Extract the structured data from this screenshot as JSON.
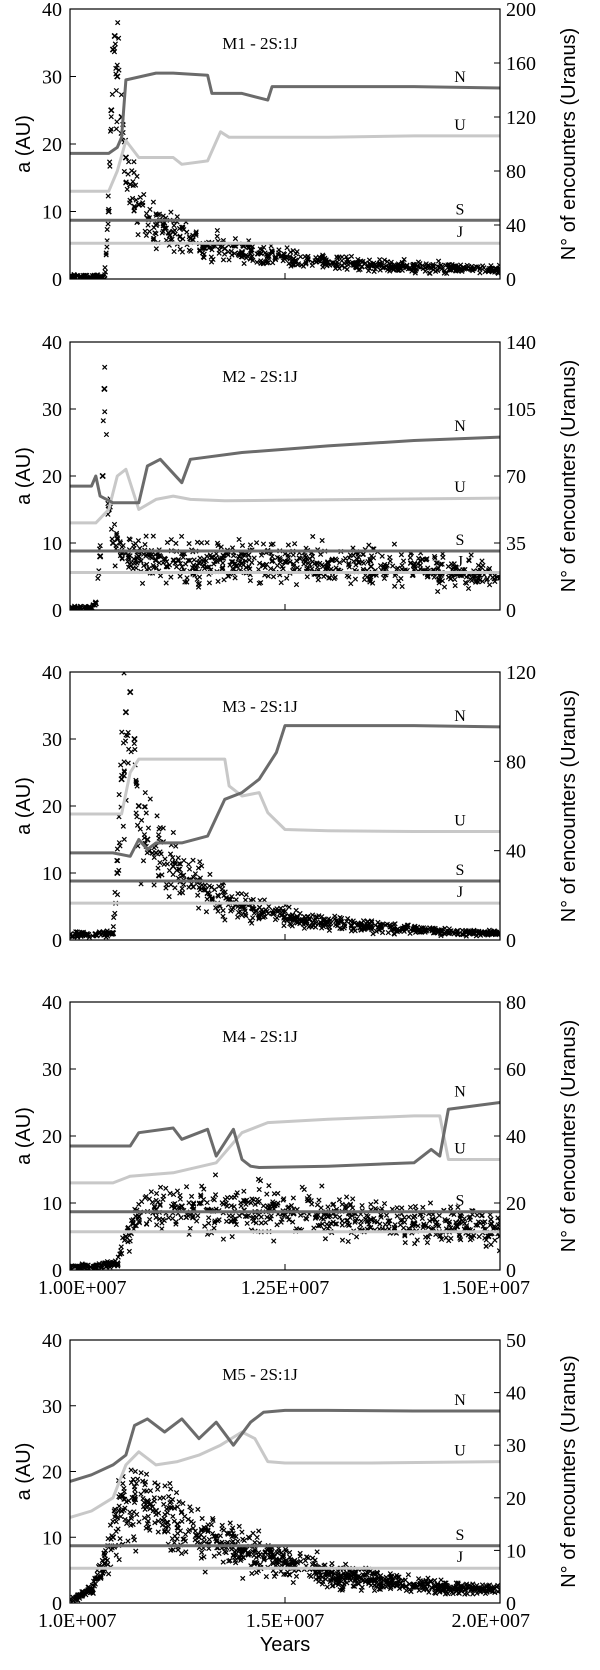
{
  "chart_data": [
    {
      "type": "line",
      "title": "M1 - 2S:1J",
      "ylabel_left": "a (AU)",
      "ylabel_right": "N° of encounters (Uranus)",
      "xlim": [
        10000000,
        15000000
      ],
      "ylim_left": [
        0,
        40
      ],
      "ylim_right": [
        0,
        200
      ],
      "yticks_left": [
        "0",
        "10",
        "20",
        "30",
        "40"
      ],
      "yticks_right": [
        "0",
        "40",
        "80",
        "120",
        "160",
        "200"
      ],
      "xticks": [],
      "colors": {
        "N": "#6b6b6b",
        "U": "#c8c8c8",
        "S": "#6b6b6b",
        "J": "#c8c8c8",
        "encounters": "#000000"
      },
      "series": [
        {
          "name": "N",
          "x": [
            10000000,
            10450000,
            10550000,
            10600000,
            10650000,
            11000000,
            11200000,
            11600000,
            11650000,
            12000000,
            12300000,
            12350000,
            13000000,
            14000000,
            15000000
          ],
          "y": [
            18.6,
            18.6,
            19.5,
            21,
            29.5,
            30.5,
            30.5,
            30.2,
            27.5,
            27.5,
            26.5,
            28.5,
            28.5,
            28.5,
            28.3
          ]
        },
        {
          "name": "U",
          "x": [
            10000000,
            10450000,
            10550000,
            10650000,
            10800000,
            11200000,
            11300000,
            11600000,
            11750000,
            11850000,
            12300000,
            12400000,
            13000000,
            14000000,
            15000000
          ],
          "y": [
            13,
            13,
            16,
            20.5,
            18,
            18,
            17,
            17.5,
            21.8,
            21,
            21,
            21,
            21,
            21.2,
            21.2
          ]
        },
        {
          "name": "S",
          "x": [
            10000000,
            15000000
          ],
          "y": [
            8.7,
            8.7
          ]
        },
        {
          "name": "J",
          "x": [
            10000000,
            15000000
          ],
          "y": [
            5.3,
            5.3
          ]
        },
        {
          "name": "encounters",
          "kind": "scatter",
          "x": [
            10000000,
            10200000,
            10400000,
            10450000,
            10480000,
            10500000,
            10520000,
            10550000,
            10600000,
            10650000,
            10700000,
            10800000,
            10900000,
            11000000,
            11100000,
            11200000,
            11400000,
            11600000,
            11800000,
            12000000,
            12300000,
            12600000,
            13000000,
            13500000,
            14000000,
            14500000,
            15000000
          ],
          "y": [
            0,
            0,
            0,
            10,
            25,
            34,
            36,
            30,
            24,
            18,
            14,
            11,
            9,
            8,
            7.5,
            7,
            6,
            5,
            4.5,
            4,
            3.5,
            3,
            2.5,
            2,
            1.8,
            1.6,
            1.5
          ]
        }
      ],
      "annotations": [
        "N",
        "U",
        "S",
        "J"
      ]
    },
    {
      "type": "line",
      "title": "M2 - 2S:1J",
      "ylabel_left": "a (AU)",
      "ylabel_right": "N° of encounters (Uranus)",
      "xlim": [
        10000000,
        15000000
      ],
      "ylim_left": [
        0,
        40
      ],
      "ylim_right": [
        0,
        140
      ],
      "yticks_left": [
        "0",
        "10",
        "20",
        "30",
        "40"
      ],
      "yticks_right": [
        "0",
        "35",
        "70",
        "105",
        "140"
      ],
      "xticks": [],
      "colors": {
        "N": "#6b6b6b",
        "U": "#c8c8c8",
        "S": "#6b6b6b",
        "J": "#c8c8c8",
        "encounters": "#000000"
      },
      "series": [
        {
          "name": "N",
          "x": [
            10000000,
            10250000,
            10300000,
            10350000,
            10500000,
            10800000,
            10900000,
            11050000,
            11300000,
            11400000,
            12000000,
            12500000,
            13000000,
            14000000,
            15000000
          ],
          "y": [
            18.5,
            18.5,
            20,
            17,
            16,
            16,
            21.5,
            22.5,
            19,
            22.5,
            23.5,
            24,
            24.5,
            25.3,
            25.8
          ]
        },
        {
          "name": "U",
          "x": [
            10000000,
            10300000,
            10450000,
            10550000,
            10650000,
            10800000,
            11000000,
            11200000,
            11400000,
            11800000,
            12500000,
            13500000,
            15000000
          ],
          "y": [
            13,
            13,
            15,
            20,
            21,
            15,
            16.5,
            17,
            16.5,
            16.3,
            16.4,
            16.5,
            16.7
          ]
        },
        {
          "name": "S",
          "x": [
            10000000,
            15000000
          ],
          "y": [
            8.8,
            8.8
          ]
        },
        {
          "name": "J",
          "x": [
            10000000,
            15000000
          ],
          "y": [
            5.6,
            5.6
          ]
        },
        {
          "name": "encounters",
          "kind": "scatter",
          "x": [
            10000000,
            10200000,
            10300000,
            10350000,
            10380000,
            10400000,
            10450000,
            10500000,
            10600000,
            10800000,
            11000000,
            11500000,
            12000000,
            12500000,
            13000000,
            13500000,
            14000000,
            14500000,
            15000000
          ],
          "y": [
            0,
            0,
            1,
            8,
            20,
            33,
            15,
            10,
            8.5,
            8,
            7.5,
            7,
            7,
            7.2,
            7,
            6.5,
            6,
            5.5,
            4.8
          ]
        }
      ],
      "annotations": [
        "N",
        "U",
        "S",
        "J"
      ]
    },
    {
      "type": "line",
      "title": "M3 - 2S:1J",
      "ylabel_left": "a (AU)",
      "ylabel_right": "N° of encounters (Uranus)",
      "xlim": [
        10000000,
        15000000
      ],
      "ylim_left": [
        0,
        40
      ],
      "ylim_right": [
        0,
        120
      ],
      "yticks_left": [
        "0",
        "10",
        "20",
        "30",
        "40"
      ],
      "yticks_right": [
        "0",
        "40",
        "80",
        "120"
      ],
      "xticks": [],
      "colors": {
        "N": "#6b6b6b",
        "U": "#c8c8c8",
        "S": "#6b6b6b",
        "J": "#c8c8c8",
        "encounters": "#000000"
      },
      "series": [
        {
          "name": "N",
          "x": [
            10000000,
            10500000,
            10700000,
            10800000,
            10900000,
            11000000,
            11300000,
            11600000,
            11800000,
            12000000,
            12200000,
            12400000,
            12500000,
            13000000,
            14000000,
            15000000
          ],
          "y": [
            13,
            13,
            12.5,
            15,
            13.5,
            14.5,
            14.5,
            15.5,
            21,
            22,
            24,
            28,
            32,
            32,
            32,
            31.8
          ]
        },
        {
          "name": "U",
          "x": [
            10000000,
            10600000,
            10700000,
            10800000,
            10900000,
            11000000,
            11300000,
            11800000,
            11850000,
            12000000,
            12200000,
            12300000,
            12500000,
            13000000,
            14000000,
            15000000
          ],
          "y": [
            18.8,
            18.8,
            25,
            27,
            27,
            27,
            27,
            27,
            23,
            21.5,
            22,
            19,
            16.5,
            16.3,
            16.2,
            16.2
          ]
        },
        {
          "name": "S",
          "x": [
            10000000,
            15000000
          ],
          "y": [
            8.8,
            8.8
          ]
        },
        {
          "name": "J",
          "x": [
            10000000,
            15000000
          ],
          "y": [
            5.5,
            5.5
          ]
        },
        {
          "name": "encounters",
          "kind": "scatter",
          "x": [
            10000000,
            10300000,
            10500000,
            10550000,
            10600000,
            10650000,
            10700000,
            10750000,
            10800000,
            10900000,
            11000000,
            11200000,
            11400000,
            11600000,
            12000000,
            12500000,
            13000000,
            13500000,
            14000000,
            14500000,
            15000000
          ],
          "y": [
            0.8,
            0.8,
            1,
            10,
            24,
            34,
            37,
            30,
            20,
            15,
            13,
            11,
            9,
            7,
            5,
            3.5,
            2.5,
            2,
            1.5,
            1.2,
            1
          ]
        }
      ],
      "annotations": [
        "N",
        "U",
        "S",
        "J"
      ]
    },
    {
      "type": "line",
      "title": "M4 - 2S:1J",
      "ylabel_left": "a (AU)",
      "ylabel_right": "N° of encounters (Uranus)",
      "xlim": [
        10000000,
        15000000
      ],
      "ylim_left": [
        0,
        40
      ],
      "ylim_right": [
        0,
        80
      ],
      "yticks_left": [
        "0",
        "10",
        "20",
        "30",
        "40"
      ],
      "yticks_right": [
        "0",
        "20",
        "40",
        "60",
        "80"
      ],
      "xticks": [
        "1.00E+007",
        "1.25E+007",
        "1.50E+007"
      ],
      "colors": {
        "N": "#6b6b6b",
        "U": "#c8c8c8",
        "S": "#6b6b6b",
        "J": "#c8c8c8",
        "encounters": "#000000"
      },
      "series": [
        {
          "name": "N",
          "x": [
            10000000,
            10700000,
            10800000,
            11200000,
            11300000,
            11600000,
            11700000,
            11900000,
            12000000,
            12100000,
            12200000,
            13000000,
            13600000,
            14000000,
            14200000,
            14300000,
            14400000,
            15000000
          ],
          "y": [
            18.5,
            18.5,
            20.5,
            21.2,
            19.5,
            21,
            17,
            21,
            16.5,
            15.5,
            15.3,
            15.5,
            15.8,
            16,
            18,
            17,
            24,
            25
          ]
        },
        {
          "name": "U",
          "x": [
            10000000,
            10500000,
            10700000,
            11200000,
            11700000,
            12000000,
            12300000,
            13000000,
            14000000,
            14300000,
            14400000,
            15000000
          ],
          "y": [
            13,
            13,
            14,
            14.5,
            16,
            20.5,
            22,
            22.5,
            23,
            23,
            16.5,
            16.5
          ]
        },
        {
          "name": "S",
          "x": [
            10000000,
            15000000
          ],
          "y": [
            8.7,
            8.7
          ]
        },
        {
          "name": "J",
          "x": [
            10000000,
            15000000
          ],
          "y": [
            5.7,
            5.7
          ]
        },
        {
          "name": "encounters",
          "kind": "scatter",
          "x": [
            10000000,
            10300000,
            10550000,
            10650000,
            10800000,
            11000000,
            11300000,
            11600000,
            12000000,
            12300000,
            12600000,
            13000000,
            13500000,
            14000000,
            14500000,
            15000000
          ],
          "y": [
            0.5,
            0.5,
            1,
            5,
            8,
            9,
            9.5,
            9,
            8.5,
            9,
            8.5,
            8,
            7.5,
            7,
            6.5,
            6
          ]
        }
      ],
      "annotations": [
        "N",
        "U",
        "S",
        "J"
      ]
    },
    {
      "type": "line",
      "title": "M5 - 2S:1J",
      "xlabel": "Years",
      "ylabel_left": "a (AU)",
      "ylabel_right": "N° of encounters (Uranus)",
      "xlim": [
        10000000,
        20000000
      ],
      "ylim_left": [
        0,
        40
      ],
      "ylim_right": [
        0,
        50
      ],
      "yticks_left": [
        "0",
        "10",
        "20",
        "30",
        "40"
      ],
      "yticks_right": [
        "0",
        "10",
        "20",
        "30",
        "40",
        "50"
      ],
      "xticks": [
        "1.0E+007",
        "1.5E+007",
        "2.0E+007"
      ],
      "colors": {
        "N": "#6b6b6b",
        "U": "#c8c8c8",
        "S": "#6b6b6b",
        "J": "#c8c8c8",
        "encounters": "#000000"
      },
      "series": [
        {
          "name": "N",
          "x": [
            10000000,
            10500000,
            11000000,
            11300000,
            11500000,
            11800000,
            12200000,
            12600000,
            13000000,
            13400000,
            13800000,
            14200000,
            14500000,
            15000000,
            16000000,
            18000000,
            20000000
          ],
          "y": [
            18.5,
            19.5,
            21,
            22.5,
            27,
            28,
            26,
            28,
            25,
            27.5,
            24,
            27.5,
            29,
            29.3,
            29.3,
            29.2,
            29.2
          ]
        },
        {
          "name": "U",
          "x": [
            10000000,
            10500000,
            11000000,
            11300000,
            11600000,
            12000000,
            12500000,
            13000000,
            13500000,
            14000000,
            14300000,
            14600000,
            15000000,
            17000000,
            20000000
          ],
          "y": [
            13,
            14,
            16,
            21,
            23,
            21,
            21.5,
            22.5,
            24,
            26,
            25,
            21.5,
            21.3,
            21.3,
            21.5
          ]
        },
        {
          "name": "S",
          "x": [
            10000000,
            15000000,
            20000000
          ],
          "y": [
            8.7,
            8.7,
            8.7
          ]
        },
        {
          "name": "J",
          "x": [
            10000000,
            15000000,
            20000000
          ],
          "y": [
            5.3,
            5.3,
            5.3
          ]
        },
        {
          "name": "encounters",
          "kind": "scatter",
          "x": [
            10000000,
            10500000,
            10800000,
            11000000,
            11200000,
            11500000,
            11800000,
            12000000,
            12500000,
            13000000,
            13500000,
            14000000,
            15000000,
            16000000,
            17000000,
            18000000,
            19000000,
            20000000
          ],
          "y": [
            0.5,
            2,
            6,
            10,
            14,
            16,
            15.5,
            14,
            12,
            10,
            9,
            8,
            6,
            4.5,
            3.5,
            2.8,
            2.2,
            2
          ]
        }
      ],
      "annotations": [
        "N",
        "U",
        "S",
        "J"
      ]
    }
  ]
}
